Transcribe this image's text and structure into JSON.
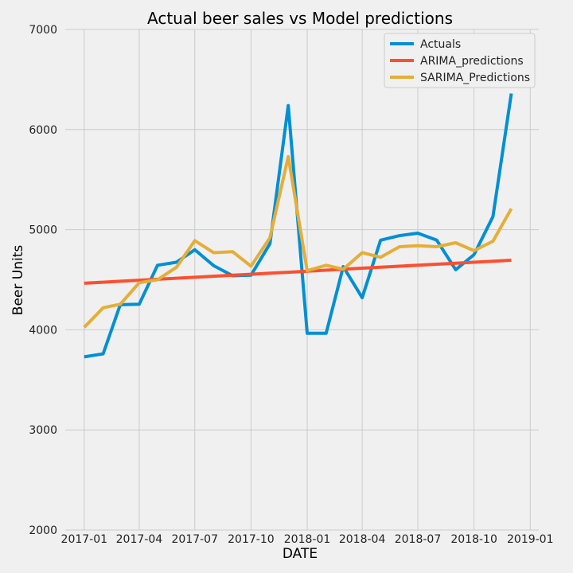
{
  "chart_data": {
    "type": "line",
    "title": "Actual beer sales vs Model predictions",
    "xlabel": "DATE",
    "ylabel": "Beer Units",
    "ylim": [
      2000,
      7000
    ],
    "xlim": [
      "2016-12-01",
      "2019-01-15"
    ],
    "x_ticks": [
      "2017-01",
      "2017-04",
      "2017-07",
      "2017-10",
      "2018-01",
      "2018-04",
      "2018-07",
      "2018-10",
      "2019-01"
    ],
    "y_ticks": [
      2000,
      3000,
      4000,
      5000,
      6000,
      7000
    ],
    "grid": true,
    "legend_position": "top-right",
    "x": [
      "2017-01",
      "2017-02",
      "2017-03",
      "2017-04",
      "2017-05",
      "2017-06",
      "2017-07",
      "2017-08",
      "2017-09",
      "2017-10",
      "2017-11",
      "2017-12",
      "2018-01",
      "2018-02",
      "2018-03",
      "2018-04",
      "2018-05",
      "2018-06",
      "2018-07",
      "2018-08",
      "2018-09",
      "2018-10",
      "2018-11",
      "2018-12"
    ],
    "series": [
      {
        "name": "Actuals",
        "color": "#008fd5",
        "values": [
          3730,
          3760,
          4250,
          4255,
          4645,
          4675,
          4800,
          4640,
          4540,
          4545,
          4860,
          6240,
          3965,
          3965,
          4630,
          4320,
          4895,
          4940,
          4965,
          4895,
          4600,
          4750,
          5130,
          6360
        ]
      },
      {
        "name": "ARIMA_predictions",
        "color": "#fc4f30",
        "values": [
          4465,
          4475,
          4485,
          4495,
          4505,
          4515,
          4525,
          4535,
          4545,
          4555,
          4565,
          4575,
          4585,
          4595,
          4605,
          4615,
          4625,
          4635,
          4645,
          4655,
          4665,
          4675,
          4685,
          4695
        ]
      },
      {
        "name": "SARIMA_Predictions",
        "color": "#e5ae38",
        "values": [
          4025,
          4220,
          4255,
          4470,
          4500,
          4625,
          4890,
          4770,
          4780,
          4635,
          4920,
          5730,
          4590,
          4645,
          4605,
          4770,
          4725,
          4830,
          4840,
          4830,
          4870,
          4790,
          4885,
          5210
        ]
      }
    ]
  }
}
